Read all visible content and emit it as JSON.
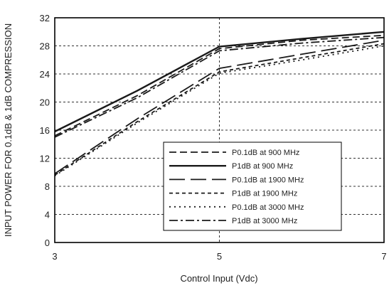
{
  "chart_data": {
    "type": "line",
    "title": "",
    "xlabel": "Control Input (Vdc)",
    "ylabel": "INPUT POWER FOR 0.1dB & 1dB COMPRESSION",
    "xlim": [
      3,
      7
    ],
    "ylim": [
      0,
      32
    ],
    "x_ticks": [
      3,
      5,
      7
    ],
    "y_ticks": [
      0,
      4,
      8,
      12,
      16,
      20,
      24,
      28,
      32
    ],
    "grid": true,
    "legend_position": "bottom-right",
    "series": [
      {
        "name": "P0.1dB at 900 MHz",
        "dash": "long-dash",
        "x": [
          3,
          4,
          5,
          6,
          7
        ],
        "y": [
          15.2,
          20.9,
          27.6,
          28.8,
          29.5
        ]
      },
      {
        "name": "P1dB at 900 MHz",
        "dash": "solid",
        "x": [
          3,
          4,
          5,
          6,
          7
        ],
        "y": [
          15.8,
          21.6,
          27.9,
          29.0,
          30.0
        ]
      },
      {
        "name": "P0.1dB at 1900 MHz",
        "dash": "extra-long-dash",
        "x": [
          3,
          4,
          5,
          6,
          7
        ],
        "y": [
          9.8,
          17.6,
          24.8,
          26.8,
          28.8
        ]
      },
      {
        "name": "P1dB at 1900 MHz",
        "dash": "short-dash",
        "x": [
          3,
          4,
          5,
          6,
          7
        ],
        "y": [
          9.6,
          17.2,
          24.3,
          26.3,
          28.3
        ]
      },
      {
        "name": "P0.1dB at 3000 MHz",
        "dash": "dotted",
        "x": [
          3,
          4,
          5,
          6,
          7
        ],
        "y": [
          9.5,
          17.0,
          24.1,
          26.0,
          28.0
        ]
      },
      {
        "name": "P1dB at 3000 MHz",
        "dash": "dash-dot",
        "x": [
          3,
          4,
          5,
          6,
          7
        ],
        "y": [
          15.0,
          20.6,
          27.3,
          28.4,
          29.2
        ]
      }
    ]
  }
}
